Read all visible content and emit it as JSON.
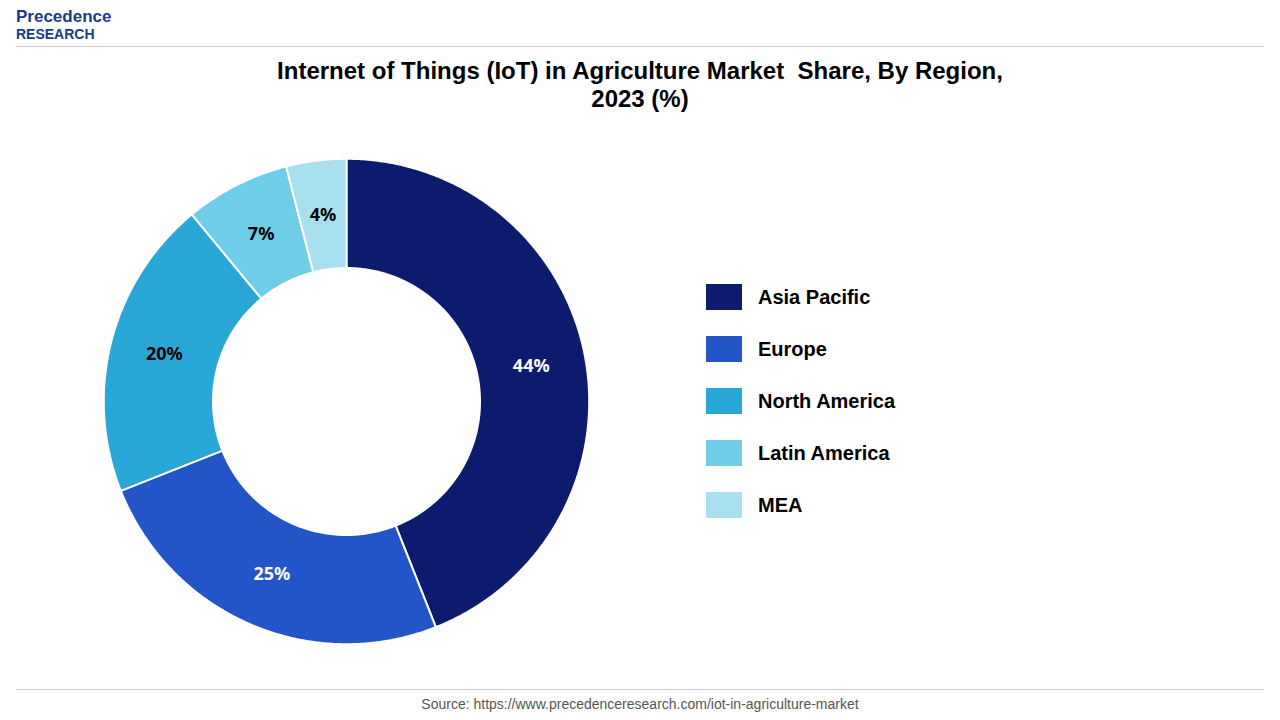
{
  "chart_data": {
    "type": "pie",
    "title": "Internet of Things (IoT) in Agriculture Market  Share, By Region,\n2023 (%)",
    "categories": [
      "Asia Pacific",
      "Europe",
      "North America",
      "Latin America",
      "MEA"
    ],
    "values": [
      44,
      25,
      20,
      7,
      4
    ],
    "value_labels": [
      "44%",
      "25%",
      "20%",
      "7%",
      "4%"
    ],
    "colors": [
      "#0d1b6e",
      "#2455c8",
      "#29a8d8",
      "#70cde8",
      "#a8e0f0"
    ],
    "data_labels": true,
    "legend": "right",
    "annotations": [
      "Precedence",
      "RESEARCH",
      "Source: https://www.precedenceresearch.com/iot-in-agriculture-market"
    ]
  }
}
